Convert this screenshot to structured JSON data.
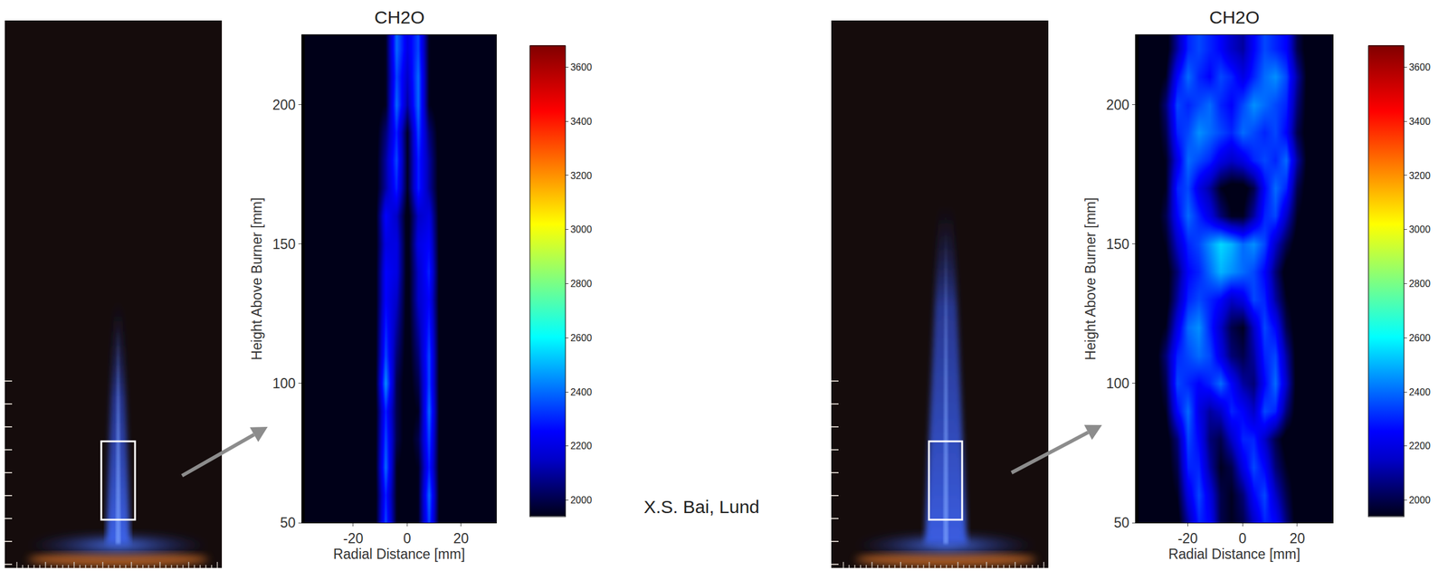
{
  "annotation": "X.S. Bai, Lund",
  "chart_data": [
    {
      "type": "heatmap",
      "title": "CH2O",
      "x_label": "Radial Distance [mm]",
      "y_label": "Height Above Burner [mm]",
      "color": "jet",
      "grid": false,
      "xlim": [
        -39,
        33
      ],
      "xticks": [
        -20,
        0,
        20
      ],
      "ylim": [
        50,
        225
      ],
      "yticks": [
        50,
        100,
        150,
        200
      ],
      "colorbar_range": [
        1940,
        3680
      ],
      "colorbar_ticks": [
        2000,
        2200,
        2400,
        2600,
        2800,
        3000,
        3200,
        3400,
        3600
      ],
      "x": [
        -36,
        -32,
        -28,
        -24,
        -20,
        -16,
        -12,
        -8,
        -4,
        0,
        4,
        8,
        12,
        16,
        20,
        24,
        28,
        32
      ],
      "y": [
        50,
        60,
        70,
        80,
        90,
        100,
        110,
        120,
        130,
        140,
        150,
        160,
        170,
        180,
        190,
        200,
        210,
        220
      ],
      "values": [
        [
          1900,
          1900,
          1900,
          1900,
          1900,
          1900,
          1900,
          2350,
          1950,
          1900,
          1950,
          2350,
          1900,
          1900,
          1900,
          1900,
          1900,
          1900
        ],
        [
          1900,
          1900,
          1900,
          1900,
          1900,
          1900,
          1900,
          2300,
          1950,
          1900,
          1950,
          2400,
          1900,
          1900,
          1900,
          1900,
          1900,
          1900
        ],
        [
          1900,
          1900,
          1900,
          1900,
          1900,
          1900,
          1900,
          2400,
          1950,
          1900,
          1950,
          2300,
          1900,
          1900,
          1900,
          1900,
          1900,
          1900
        ],
        [
          1900,
          1900,
          1900,
          1900,
          1900,
          1900,
          1900,
          2350,
          2000,
          1900,
          2000,
          2350,
          1900,
          1900,
          1900,
          1900,
          1900,
          1900
        ],
        [
          1900,
          1900,
          1900,
          1900,
          1900,
          1900,
          1900,
          2300,
          2000,
          1900,
          1950,
          2400,
          1900,
          1900,
          1900,
          1900,
          1900,
          1900
        ],
        [
          1900,
          1900,
          1900,
          1900,
          1900,
          1900,
          1900,
          2450,
          2000,
          1900,
          2000,
          2350,
          1900,
          1900,
          1900,
          1900,
          1900,
          1900
        ],
        [
          1900,
          1900,
          1900,
          1900,
          1900,
          1900,
          1900,
          2350,
          2050,
          1900,
          2050,
          2350,
          1900,
          1900,
          1900,
          1900,
          1900,
          1900
        ],
        [
          1900,
          1900,
          1900,
          1900,
          1900,
          1900,
          1900,
          2300,
          2100,
          1900,
          2100,
          2300,
          1900,
          1900,
          1900,
          1900,
          1900,
          1900
        ],
        [
          1900,
          1900,
          1900,
          1900,
          1900,
          1900,
          1900,
          2250,
          2150,
          1900,
          2150,
          2250,
          1900,
          1900,
          1900,
          1900,
          1900,
          1900
        ],
        [
          1900,
          1900,
          1900,
          1900,
          1900,
          1900,
          1900,
          2250,
          2200,
          1900,
          2150,
          2300,
          1900,
          1900,
          1900,
          1900,
          1900,
          1900
        ],
        [
          1900,
          1900,
          1900,
          1900,
          1900,
          1900,
          1900,
          2200,
          2200,
          1900,
          2200,
          2250,
          1900,
          1900,
          1900,
          1900,
          1900,
          1900
        ],
        [
          1900,
          1900,
          1900,
          1900,
          1900,
          1900,
          1900,
          2250,
          2150,
          1900,
          2150,
          2200,
          1900,
          1900,
          1900,
          1900,
          1900,
          1900
        ],
        [
          1900,
          1900,
          1900,
          1900,
          1900,
          1900,
          1900,
          2100,
          2300,
          1950,
          2300,
          2100,
          1900,
          1900,
          1900,
          1900,
          1900,
          1900
        ],
        [
          1900,
          1900,
          1900,
          1900,
          1900,
          1900,
          1900,
          2100,
          2350,
          1950,
          2300,
          2100,
          1900,
          1900,
          1900,
          1900,
          1900,
          1900
        ],
        [
          1900,
          1900,
          1900,
          1900,
          1900,
          1900,
          1900,
          2050,
          2300,
          1950,
          2350,
          2050,
          1900,
          1900,
          1900,
          1900,
          1900,
          1900
        ],
        [
          1900,
          1900,
          1900,
          1900,
          1900,
          1900,
          1900,
          1950,
          2400,
          2100,
          2400,
          1950,
          1900,
          1900,
          1900,
          1900,
          1900,
          1900
        ],
        [
          1900,
          1900,
          1900,
          1900,
          1900,
          1900,
          1900,
          1950,
          2350,
          2150,
          2400,
          1950,
          1900,
          1900,
          1900,
          1900,
          1900,
          1900
        ],
        [
          1900,
          1900,
          1900,
          1900,
          1900,
          1900,
          1900,
          1950,
          2400,
          2200,
          2350,
          1950,
          1900,
          1900,
          1900,
          1900,
          1900,
          1900
        ]
      ]
    },
    {
      "type": "heatmap",
      "title": "CH2O",
      "x_label": "Radial Distance [mm]",
      "y_label": "Height Above Burner [mm]",
      "color": "jet",
      "grid": false,
      "xlim": [
        -39,
        33
      ],
      "xticks": [
        -20,
        0,
        20
      ],
      "ylim": [
        50,
        225
      ],
      "yticks": [
        50,
        100,
        150,
        200
      ],
      "colorbar_range": [
        1940,
        3680
      ],
      "colorbar_ticks": [
        2000,
        2200,
        2400,
        2600,
        2800,
        3000,
        3200,
        3400,
        3600
      ],
      "x": [
        -36,
        -32,
        -28,
        -24,
        -20,
        -16,
        -12,
        -8,
        -4,
        0,
        4,
        8,
        12,
        16,
        20,
        24,
        28,
        32
      ],
      "y": [
        50,
        60,
        70,
        80,
        90,
        100,
        110,
        120,
        130,
        140,
        150,
        160,
        170,
        180,
        190,
        200,
        210,
        220
      ],
      "values": [
        [
          1900,
          1900,
          1900,
          1900,
          2100,
          2300,
          2250,
          2000,
          1950,
          2000,
          2150,
          2300,
          2250,
          2050,
          1900,
          1900,
          1900,
          1900
        ],
        [
          1900,
          1900,
          1900,
          1950,
          2200,
          2350,
          2200,
          2000,
          1950,
          2050,
          2250,
          2350,
          2150,
          2000,
          1900,
          1900,
          1900,
          1900
        ],
        [
          1900,
          1900,
          1900,
          2000,
          2300,
          2300,
          2100,
          1950,
          2000,
          2200,
          2350,
          2250,
          2050,
          1950,
          1900,
          1900,
          1900,
          1900
        ],
        [
          1900,
          1900,
          1900,
          2050,
          2350,
          2250,
          2050,
          2000,
          2150,
          2300,
          2300,
          2150,
          2000,
          1900,
          1900,
          1900,
          1900,
          1900
        ],
        [
          1900,
          1900,
          1950,
          2250,
          2400,
          2200,
          2100,
          2150,
          2300,
          2250,
          2150,
          2350,
          2300,
          2050,
          1900,
          1900,
          1900,
          1900
        ],
        [
          1900,
          1900,
          2000,
          2350,
          2300,
          2250,
          2300,
          2400,
          2250,
          2100,
          2050,
          2250,
          2400,
          2150,
          1900,
          1900,
          1900,
          1900
        ],
        [
          1900,
          1900,
          2050,
          2300,
          2350,
          2400,
          2350,
          2200,
          2050,
          2000,
          2100,
          2300,
          2350,
          2100,
          1900,
          1900,
          1900,
          1900
        ],
        [
          1900,
          1900,
          1950,
          2200,
          2400,
          2450,
          2300,
          2150,
          2000,
          1950,
          2150,
          2350,
          2250,
          2000,
          1900,
          1900,
          1900,
          1900
        ],
        [
          1900,
          1900,
          1900,
          2100,
          2300,
          2350,
          2300,
          2250,
          2150,
          2200,
          2350,
          2300,
          2100,
          1950,
          1900,
          1900,
          1900,
          1900
        ],
        [
          1900,
          1900,
          1900,
          2050,
          2250,
          2300,
          2400,
          2500,
          2450,
          2400,
          2350,
          2250,
          2050,
          1900,
          1900,
          1900,
          1900,
          1900
        ],
        [
          1900,
          1900,
          1950,
          2150,
          2300,
          2350,
          2450,
          2550,
          2500,
          2400,
          2450,
          2350,
          2150,
          2000,
          1900,
          1900,
          1900,
          1900
        ],
        [
          1900,
          1900,
          2000,
          2250,
          2400,
          2300,
          2200,
          2050,
          1950,
          1950,
          2100,
          2300,
          2350,
          2150,
          1950,
          1900,
          1900,
          1900
        ],
        [
          1900,
          1900,
          1950,
          2300,
          2350,
          2200,
          2100,
          1950,
          1900,
          1900,
          2000,
          2250,
          2400,
          2300,
          2000,
          1900,
          1900,
          1900
        ],
        [
          1900,
          1900,
          1950,
          2200,
          2400,
          2350,
          2300,
          2200,
          2150,
          2200,
          2300,
          2350,
          2300,
          2400,
          2100,
          1900,
          1900,
          1900
        ],
        [
          1900,
          1900,
          2000,
          2300,
          2350,
          2450,
          2400,
          2350,
          2300,
          2400,
          2350,
          2300,
          2350,
          2250,
          2000,
          1900,
          1900,
          1900
        ],
        [
          1900,
          1900,
          2050,
          2350,
          2300,
          2350,
          2400,
          2300,
          2250,
          2350,
          2450,
          2400,
          2350,
          2300,
          2050,
          1900,
          1900,
          1900
        ],
        [
          1900,
          1900,
          1950,
          2250,
          2400,
          2300,
          2250,
          2350,
          2300,
          2200,
          2300,
          2400,
          2450,
          2350,
          2100,
          1900,
          1900,
          1900
        ],
        [
          1900,
          1900,
          1900,
          2100,
          2300,
          2350,
          2300,
          2250,
          2150,
          2100,
          2250,
          2350,
          2300,
          2250,
          2000,
          1900,
          1900,
          1900
        ]
      ]
    }
  ]
}
